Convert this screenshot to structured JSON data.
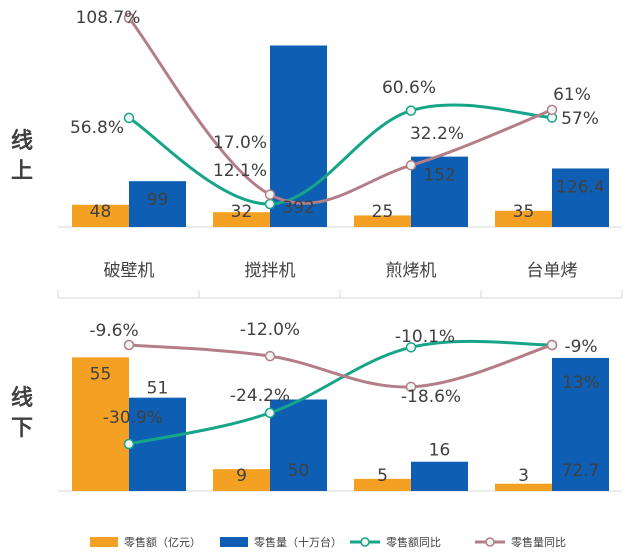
{
  "chart_data": {
    "type": "bar",
    "categories": [
      "破壁机",
      "搅拌机",
      "煎烤机",
      "台单烤"
    ],
    "legend": [
      "零售额（亿元）",
      "零售量（十万台）",
      "零售额同比",
      "零售量同比"
    ],
    "colors": {
      "sales": "#F4A023",
      "volume": "#0E5FB4",
      "sales_yoy": "#16A589",
      "volume_yoy": "#B47E88"
    },
    "panels": [
      {
        "name": "线上",
        "sales": [
          48,
          32,
          25,
          35
        ],
        "volume": [
          99,
          392,
          152,
          126.4
        ],
        "sales_yoy": [
          56.8,
          12.1,
          60.6,
          57
        ],
        "volume_yoy": [
          108.7,
          17.0,
          32.2,
          61
        ],
        "sales_labels": [
          "48",
          "32",
          "25",
          "35"
        ],
        "volume_labels": [
          "99",
          "392",
          "152",
          "126.4"
        ],
        "sales_yoy_labels": [
          "56.8%",
          "12.1%",
          "60.6%",
          "57%"
        ],
        "volume_yoy_labels": [
          "108.7%",
          "17.0%",
          "32.2%",
          "61%"
        ]
      },
      {
        "name": "线下",
        "sales": [
          55,
          9,
          5,
          3
        ],
        "volume": [
          51,
          50,
          16,
          72.7
        ],
        "sales_yoy": [
          -30.9,
          -24.2,
          -10.1,
          -9
        ],
        "volume_yoy": [
          -9.6,
          -12.0,
          -18.6,
          13
        ],
        "sales_labels": [
          "55",
          "9",
          "5",
          "3"
        ],
        "volume_labels": [
          "51",
          "50",
          "16",
          "72.7"
        ],
        "sales_yoy_labels": [
          "-30.9%",
          "-24.2%",
          "-10.1%",
          "-9%"
        ],
        "volume_yoy_labels": [
          "-9.6%",
          "-12.0%",
          "-18.6%",
          "13%"
        ]
      }
    ],
    "panel_labels": [
      [
        "线",
        "上"
      ],
      [
        "线",
        "下"
      ]
    ]
  }
}
